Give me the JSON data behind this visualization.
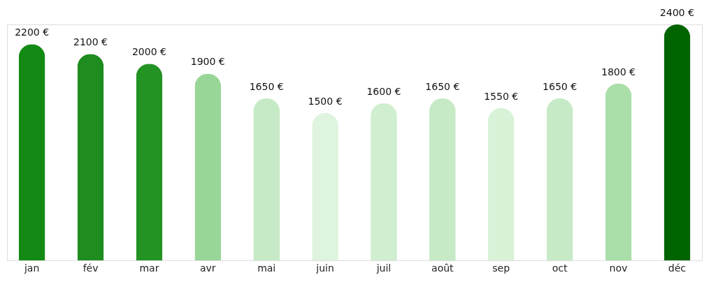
{
  "chart_data": {
    "type": "bar",
    "categories": [
      "jan",
      "fév",
      "mar",
      "avr",
      "mai",
      "juin",
      "juil",
      "août",
      "sep",
      "oct",
      "nov",
      "déc"
    ],
    "values": [
      2200,
      2100,
      2000,
      1900,
      1650,
      1500,
      1600,
      1650,
      1550,
      1650,
      1800,
      2400
    ],
    "value_labels": [
      "2200 €",
      "2100 €",
      "2000 €",
      "1900 €",
      "1650 €",
      "1500 €",
      "1600 €",
      "1650 €",
      "1550 €",
      "1650 €",
      "1800 €",
      "2400 €"
    ],
    "colors": [
      "#138a13",
      "#1e8c1e",
      "#239323",
      "#98d698",
      "#c6eac6",
      "#dff4df",
      "#d0eed0",
      "#c6eac6",
      "#d8f2d8",
      "#c6eac6",
      "#a9dea9",
      "#006400"
    ],
    "tick_labels": "x",
    "grid": false
  }
}
